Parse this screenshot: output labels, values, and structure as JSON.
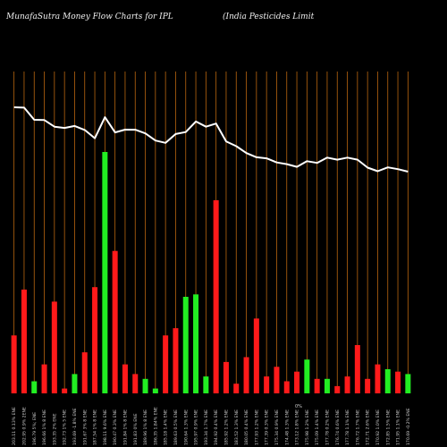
{
  "header": {
    "left": "MunafaSutra  Money Flow  Charts for IPL",
    "right": "(India  Pesticides Limit"
  },
  "colors": {
    "background": "#000000",
    "grid": "#b8650f",
    "up": "#22ee22",
    "down": "#ff1a1a",
    "line": "#ffffff"
  },
  "chart_data": {
    "type": "bar",
    "title": "",
    "xlabel": "",
    "ylabel": "",
    "grid": true,
    "pct_label": "0%",
    "categories": [
      "203.11 0.13% ENE",
      "202.95 0.9% 2ENE",
      "196.79 5%; ENE",
      "196.66 1% 8 ENE",
      "193.35 2% ENE",
      "192.73 1% 5 ENE",
      "193.69 -1.8% ENE",
      "191.67 3% 8 ENE",
      "187.54 1% 8 ENE",
      "198.11 9.6% ENE",
      "190.47 0.3% ENE",
      "191.84 1% 8 ENE",
      "191.83 0% ENE",
      "189.96 1% 8 ENE",
      "186.35 1.84% ENE",
      "185.18 1.4% ENE",
      "189.63 0.5% ENE",
      "190.64 1.3% ENE",
      "195.97 0.9% ENE",
      "193.34 1.7% ENE",
      "194.92 0.4% ENE",
      "185.92 1.2% ENE",
      "183.52 1.3% ENE",
      "180.05 0.4% ENE",
      "177.93 1.2% ENE",
      "177.39 0.3% ENE",
      "175.34 0.9% ENE",
      "174.48 1.3% ENE",
      "173.12 1.8% ENE",
      "175.98 1.2% ENE",
      "175.09 1.4% ENE",
      "177.78 0.2% ENE",
      "176.74 0.6% ENE",
      "177.78 1.1% ENE",
      "176.72 1.7% ENE",
      "172.71 2.6% ENE",
      "170.92 1.0% ENE",
      "172.85 1.5% ENE",
      "171.95 1.1% ENE",
      "170.69 -0.2% ENE"
    ],
    "series": [
      {
        "values": [
          24,
          43,
          5,
          12,
          38,
          2,
          8,
          17,
          44,
          100,
          59,
          12,
          8,
          6,
          2,
          24,
          27,
          40,
          41,
          7,
          80,
          13,
          4,
          15,
          31,
          7,
          11,
          5,
          9,
          14,
          6,
          6,
          3,
          7,
          20,
          6,
          12,
          10,
          9,
          8
        ],
        "direction": [
          "down",
          "down",
          "up",
          "down",
          "down",
          "down",
          "up",
          "down",
          "down",
          "up",
          "down",
          "down",
          "down",
          "up",
          "up",
          "down",
          "down",
          "up",
          "up",
          "up",
          "down",
          "down",
          "down",
          "down",
          "down",
          "down",
          "down",
          "down",
          "down",
          "up",
          "down",
          "up",
          "down",
          "down",
          "down",
          "down",
          "down",
          "up",
          "down",
          "up"
        ]
      },
      {
        "values": [
          203.11,
          202.95,
          196.79,
          196.66,
          193.35,
          192.73,
          193.69,
          191.67,
          187.54,
          198.11,
          190.47,
          191.84,
          191.83,
          189.96,
          186.35,
          185.18,
          189.63,
          190.64,
          195.97,
          193.34,
          194.92,
          185.92,
          183.52,
          180.05,
          177.93,
          177.39,
          175.34,
          174.48,
          173.12,
          175.98,
          175.09,
          177.78,
          176.74,
          177.78,
          176.72,
          172.71,
          170.92,
          172.85,
          171.95,
          170.69
        ]
      }
    ]
  }
}
